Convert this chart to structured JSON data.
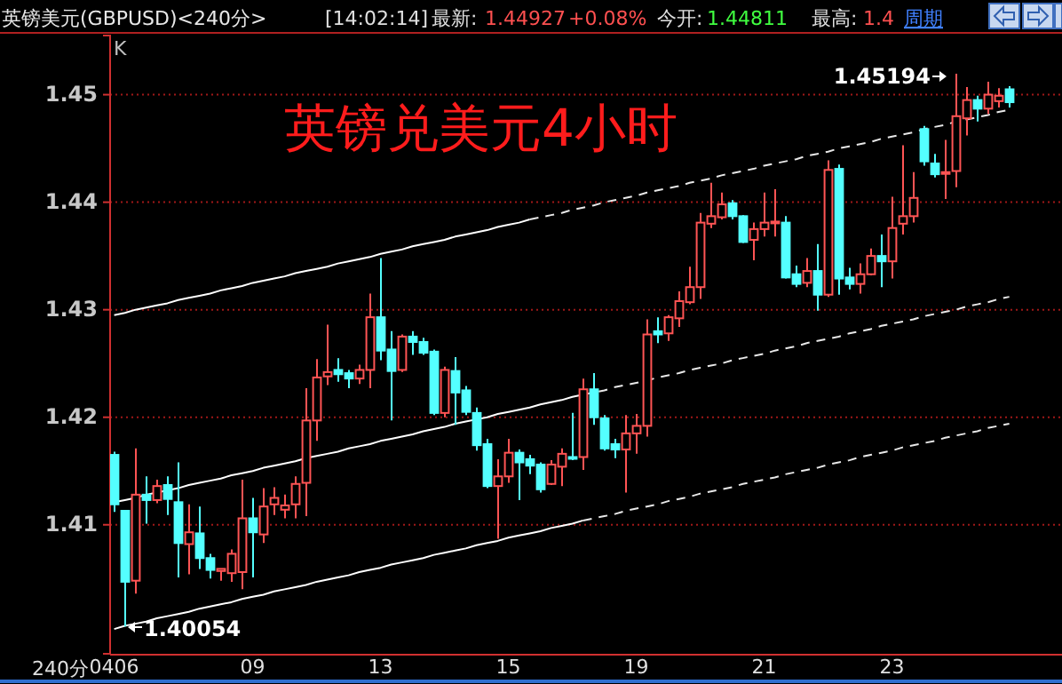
{
  "chart_data": {
    "type": "candlestick",
    "title": "英镑兑美元4小时",
    "subtitle": "英镑美元(GBPUSD)<240分>",
    "xlabel": "240分",
    "categories": [
      "0406",
      null,
      null,
      null,
      null,
      null,
      null,
      null,
      null,
      null,
      null,
      null,
      null,
      "09",
      null,
      null,
      null,
      null,
      null,
      null,
      null,
      null,
      null,
      null,
      null,
      "13",
      null,
      null,
      null,
      null,
      null,
      null,
      null,
      null,
      null,
      null,
      null,
      "15",
      null,
      null,
      null,
      null,
      null,
      null,
      null,
      null,
      null,
      null,
      null,
      "19",
      null,
      null,
      null,
      null,
      null,
      null,
      null,
      null,
      null,
      null,
      null,
      "21",
      null,
      null,
      null,
      null,
      null,
      null,
      null,
      null,
      null,
      null,
      null,
      "23",
      null,
      null,
      null,
      null,
      null,
      null,
      null,
      null,
      null,
      null,
      null
    ],
    "ylim": [
      1.398,
      1.4555
    ],
    "yticks": [
      1.41,
      1.42,
      1.43,
      1.44,
      1.45
    ],
    "grid": "y",
    "marker": "none",
    "ohlc": [
      [
        1.4165,
        1.4168,
        1.4112,
        1.4119
      ],
      [
        1.4113,
        1.4113,
        1.40054,
        1.4047
      ],
      [
        1.4048,
        1.4171,
        1.4036,
        1.4128
      ],
      [
        1.4128,
        1.4145,
        1.4101,
        1.4123
      ],
      [
        1.4123,
        1.4142,
        1.412,
        1.4136
      ],
      [
        1.4137,
        1.4145,
        1.4109,
        1.4124
      ],
      [
        1.4121,
        1.4158,
        1.4051,
        1.4083
      ],
      [
        1.4082,
        1.4119,
        1.4054,
        1.4093
      ],
      [
        1.4092,
        1.4117,
        1.4059,
        1.4069
      ],
      [
        1.4069,
        1.4073,
        1.405,
        1.4058
      ],
      [
        1.4057,
        1.4059,
        1.4048,
        1.4059
      ],
      [
        1.4055,
        1.4077,
        1.4047,
        1.4073
      ],
      [
        1.4056,
        1.4142,
        1.404,
        1.4106
      ],
      [
        1.4106,
        1.4125,
        1.4051,
        1.4093
      ],
      [
        1.4091,
        1.4134,
        1.4083,
        1.4117
      ],
      [
        1.4119,
        1.4135,
        1.4109,
        1.4125
      ],
      [
        1.4114,
        1.4128,
        1.4106,
        1.4118
      ],
      [
        1.4119,
        1.4145,
        1.4106,
        1.4138
      ],
      [
        1.4139,
        1.4227,
        1.4108,
        1.4197
      ],
      [
        1.4197,
        1.4254,
        1.4178,
        1.4237
      ],
      [
        1.4238,
        1.4286,
        1.423,
        1.4242
      ],
      [
        1.4244,
        1.4255,
        1.4233,
        1.424
      ],
      [
        1.4241,
        1.4244,
        1.4227,
        1.4236
      ],
      [
        1.4236,
        1.4249,
        1.4231,
        1.4244
      ],
      [
        1.4244,
        1.4315,
        1.4227,
        1.4293
      ],
      [
        1.4293,
        1.4348,
        1.4253,
        1.4262
      ],
      [
        1.4263,
        1.428,
        1.4197,
        1.4243
      ],
      [
        1.4244,
        1.4277,
        1.4242,
        1.4275
      ],
      [
        1.4275,
        1.428,
        1.4258,
        1.427
      ],
      [
        1.427,
        1.4274,
        1.4258,
        1.426
      ],
      [
        1.4261,
        1.4263,
        1.4202,
        1.4204
      ],
      [
        1.4204,
        1.4247,
        1.42,
        1.4244
      ],
      [
        1.4243,
        1.4256,
        1.4193,
        1.4223
      ],
      [
        1.4225,
        1.4229,
        1.4202,
        1.4205
      ],
      [
        1.4204,
        1.4209,
        1.4169,
        1.4174
      ],
      [
        1.4175,
        1.418,
        1.4134,
        1.4136
      ],
      [
        1.4136,
        1.4161,
        1.4087,
        1.4145
      ],
      [
        1.4145,
        1.418,
        1.4139,
        1.4167
      ],
      [
        1.4167,
        1.417,
        1.4123,
        1.4158
      ],
      [
        1.4161,
        1.4165,
        1.4147,
        1.4155
      ],
      [
        1.4156,
        1.4158,
        1.413,
        1.4133
      ],
      [
        1.4138,
        1.416,
        1.4137,
        1.4156
      ],
      [
        1.4154,
        1.4171,
        1.4136,
        1.4166
      ],
      [
        1.4163,
        1.4204,
        1.416,
        1.4162
      ],
      [
        1.4163,
        1.4236,
        1.4151,
        1.4226
      ],
      [
        1.4226,
        1.4241,
        1.4193,
        1.42
      ],
      [
        1.4199,
        1.4202,
        1.4169,
        1.4171
      ],
      [
        1.4175,
        1.418,
        1.4162,
        1.417
      ],
      [
        1.417,
        1.4202,
        1.413,
        1.4185
      ],
      [
        1.4185,
        1.4203,
        1.4166,
        1.4192
      ],
      [
        1.4192,
        1.4291,
        1.4182,
        1.4277
      ],
      [
        1.428,
        1.4293,
        1.4269,
        1.4277
      ],
      [
        1.4278,
        1.4295,
        1.4271,
        1.4293
      ],
      [
        1.4292,
        1.4317,
        1.4284,
        1.4308
      ],
      [
        1.4307,
        1.434,
        1.4305,
        1.4321
      ],
      [
        1.4321,
        1.439,
        1.431,
        1.4381
      ],
      [
        1.438,
        1.4418,
        1.4376,
        1.4387
      ],
      [
        1.4386,
        1.4409,
        1.4384,
        1.4398
      ],
      [
        1.4399,
        1.4402,
        1.4384,
        1.4387
      ],
      [
        1.4387,
        1.4388,
        1.4362,
        1.4363
      ],
      [
        1.4365,
        1.4381,
        1.4346,
        1.4375
      ],
      [
        1.4375,
        1.4409,
        1.4368,
        1.4381
      ],
      [
        1.4381,
        1.4412,
        1.4368,
        1.4382
      ],
      [
        1.4381,
        1.4387,
        1.4329,
        1.433
      ],
      [
        1.4333,
        1.4341,
        1.4321,
        1.4324
      ],
      [
        1.4325,
        1.4348,
        1.4321,
        1.4336
      ],
      [
        1.4336,
        1.4361,
        1.4299,
        1.4314
      ],
      [
        1.4314,
        1.4439,
        1.4312,
        1.443
      ],
      [
        1.4431,
        1.4435,
        1.4314,
        1.4329
      ],
      [
        1.433,
        1.4339,
        1.4319,
        1.4324
      ],
      [
        1.4324,
        1.4343,
        1.4315,
        1.4333
      ],
      [
        1.4333,
        1.4357,
        1.4332,
        1.435
      ],
      [
        1.435,
        1.437,
        1.4321,
        1.4345
      ],
      [
        1.4345,
        1.4405,
        1.4329,
        1.4376
      ],
      [
        1.438,
        1.4453,
        1.437,
        1.4387
      ],
      [
        1.4387,
        1.4428,
        1.4381,
        1.4404
      ],
      [
        1.4468,
        1.4471,
        1.4434,
        1.4438
      ],
      [
        1.4436,
        1.4445,
        1.4423,
        1.4426
      ],
      [
        1.4427,
        1.4458,
        1.4403,
        1.4428
      ],
      [
        1.4429,
        1.45194,
        1.4414,
        1.448
      ],
      [
        1.4478,
        1.4507,
        1.4462,
        1.4495
      ],
      [
        1.4495,
        1.4499,
        1.4475,
        1.4487
      ],
      [
        1.4487,
        1.4512,
        1.4482,
        1.45
      ],
      [
        1.4494,
        1.4506,
        1.4488,
        1.4499
      ],
      [
        1.4505,
        1.4508,
        1.4488,
        1.4493
      ]
    ],
    "colors": [
      "#54ffff",
      "#54ffff",
      "#ff5454",
      "#54ffff",
      "#ff5454",
      "#54ffff",
      "#54ffff",
      "#ff5454",
      "#54ffff",
      "#54ffff",
      "#ff5454",
      "#ff5454",
      "#ff5454",
      "#54ffff",
      "#ff5454",
      "#ff5454",
      "#ff5454",
      "#ff5454",
      "#ff5454",
      "#ff5454",
      "#ff5454",
      "#54ffff",
      "#54ffff",
      "#ff5454",
      "#ff5454",
      "#54ffff",
      "#54ffff",
      "#ff5454",
      "#54ffff",
      "#54ffff",
      "#54ffff",
      "#ff5454",
      "#54ffff",
      "#54ffff",
      "#54ffff",
      "#54ffff",
      "#ff5454",
      "#ff5454",
      "#54ffff",
      "#54ffff",
      "#54ffff",
      "#ff5454",
      "#ff5454",
      "#54ffff",
      "#ff5454",
      "#54ffff",
      "#54ffff",
      "#54ffff",
      "#ff5454",
      "#ff5454",
      "#ff5454",
      "#54ffff",
      "#ff5454",
      "#ff5454",
      "#ff5454",
      "#ff5454",
      "#ff5454",
      "#ff5454",
      "#54ffff",
      "#54ffff",
      "#ff5454",
      "#ff5454",
      "#ff5454",
      "#54ffff",
      "#54ffff",
      "#ff5454",
      "#54ffff",
      "#ff5454",
      "#54ffff",
      "#54ffff",
      "#ff5454",
      "#ff5454",
      "#54ffff",
      "#ff5454",
      "#ff5454",
      "#ff5454",
      "#54ffff",
      "#54ffff",
      "#ff5454",
      "#ff5454",
      "#ff5454",
      "#54ffff",
      "#ff5454",
      "#ff5454",
      "#54ffff"
    ],
    "series": [
      {
        "type": "line",
        "color": "#ffffff",
        "line_style": "solid",
        "values": [
          1.4295,
          1.4297,
          1.43,
          1.4302,
          1.4304,
          1.4306,
          1.4309,
          1.4311,
          1.4313,
          1.4315,
          1.4318,
          1.432,
          1.4322,
          1.4325,
          1.4327,
          1.4329,
          1.4331,
          1.4334,
          1.4336,
          1.4338,
          1.434,
          1.4343,
          1.4345,
          1.4347,
          1.4349,
          1.4352,
          1.4354,
          1.4356,
          1.4359,
          1.4361,
          1.4363,
          1.4365,
          1.4368,
          1.437,
          1.4372,
          1.4374,
          1.4377,
          1.4379,
          1.4381,
          1.4384,
          null,
          null,
          null,
          null,
          null,
          null,
          null,
          null,
          null,
          null,
          null,
          null,
          null,
          null,
          null,
          null,
          null,
          null,
          null,
          null,
          null,
          null,
          null,
          null,
          null,
          null,
          null,
          null,
          null,
          null,
          null,
          null,
          null,
          null,
          null,
          null,
          null,
          null,
          null,
          null,
          null,
          null,
          null,
          null,
          null
        ]
      },
      {
        "type": "line",
        "color": "#e8e8e8",
        "line_style": "dashed",
        "values": [
          null,
          null,
          null,
          null,
          null,
          null,
          null,
          null,
          null,
          null,
          null,
          null,
          null,
          null,
          null,
          null,
          null,
          null,
          null,
          null,
          null,
          null,
          null,
          null,
          null,
          null,
          null,
          null,
          null,
          null,
          null,
          null,
          null,
          null,
          null,
          null,
          null,
          null,
          null,
          1.4384,
          1.4386,
          1.4388,
          1.439,
          1.4393,
          1.4395,
          1.4397,
          1.44,
          1.4402,
          1.4404,
          1.4406,
          1.4409,
          1.4411,
          1.4413,
          1.4415,
          1.4418,
          1.442,
          1.4422,
          1.4425,
          1.4427,
          1.4429,
          1.4431,
          1.4434,
          1.4436,
          1.4438,
          1.444,
          1.4443,
          1.4445,
          1.4447,
          1.445,
          1.4452,
          1.4454,
          1.4456,
          1.4459,
          1.4461,
          1.4463,
          1.4465,
          1.4468,
          1.447,
          1.4472,
          1.4475,
          1.4477,
          1.4479,
          1.4481,
          1.4484,
          1.4486
        ]
      },
      {
        "type": "line",
        "color": "#ffffff",
        "line_style": "solid",
        "values": [
          1.4121,
          1.4123,
          1.4125,
          1.4128,
          1.413,
          1.4132,
          1.4134,
          1.4137,
          1.4139,
          1.4141,
          1.4143,
          1.4146,
          1.4148,
          1.415,
          1.4153,
          1.4155,
          1.4157,
          1.4159,
          1.4162,
          1.4164,
          1.4166,
          1.4168,
          1.4171,
          1.4173,
          1.4175,
          1.4178,
          1.418,
          1.4182,
          1.4184,
          1.4187,
          1.4189,
          1.4191,
          1.4194,
          1.4196,
          1.4198,
          1.42,
          1.4203,
          1.4205,
          1.4207,
          1.4209,
          1.4212,
          1.4214,
          1.4216,
          1.4219,
          1.4221,
          null,
          null,
          null,
          null,
          null,
          null,
          null,
          null,
          null,
          null,
          null,
          null,
          null,
          null,
          null,
          null,
          null,
          null,
          null,
          null,
          null,
          null,
          null,
          null,
          null,
          null,
          null,
          null,
          null,
          null,
          null,
          null,
          null,
          null,
          null,
          null,
          null,
          null,
          null,
          null
        ]
      },
      {
        "type": "line",
        "color": "#e8e8e8",
        "line_style": "dashed",
        "values": [
          null,
          null,
          null,
          null,
          null,
          null,
          null,
          null,
          null,
          null,
          null,
          null,
          null,
          null,
          null,
          null,
          null,
          null,
          null,
          null,
          null,
          null,
          null,
          null,
          null,
          null,
          null,
          null,
          null,
          null,
          null,
          null,
          null,
          null,
          null,
          null,
          null,
          null,
          null,
          null,
          null,
          null,
          null,
          null,
          1.4221,
          1.4223,
          1.4225,
          1.4228,
          1.423,
          1.4232,
          1.4234,
          1.4237,
          1.4239,
          1.4241,
          1.4244,
          1.4246,
          1.4248,
          1.425,
          1.4253,
          1.4255,
          1.4257,
          1.4259,
          1.4262,
          1.4264,
          1.4266,
          1.4269,
          1.4271,
          1.4273,
          1.4275,
          1.4278,
          1.428,
          1.4282,
          1.4285,
          1.4287,
          1.4289,
          1.4291,
          1.4294,
          1.4296,
          1.4298,
          1.43,
          1.4303,
          1.4305,
          1.4307,
          1.431,
          1.4312
        ]
      },
      {
        "type": "line",
        "color": "#ffffff",
        "line_style": "solid",
        "values": [
          1.4003,
          1.4006,
          1.4008,
          1.401,
          1.4013,
          1.4015,
          1.4017,
          1.4019,
          1.4022,
          1.4024,
          1.4026,
          1.4028,
          1.4031,
          1.4033,
          1.4035,
          1.4038,
          1.404,
          1.4042,
          1.4044,
          1.4047,
          1.4049,
          1.4051,
          1.4053,
          1.4056,
          1.4058,
          1.406,
          1.4063,
          1.4065,
          1.4067,
          1.4069,
          1.4072,
          1.4074,
          1.4076,
          1.4078,
          1.4081,
          1.4083,
          1.4085,
          1.4088,
          1.409,
          1.4092,
          1.4094,
          1.4097,
          1.4099,
          1.4101,
          1.4104,
          null,
          null,
          null,
          null,
          null,
          null,
          null,
          null,
          null,
          null,
          null,
          null,
          null,
          null,
          null,
          null,
          null,
          null,
          null,
          null,
          null,
          null,
          null,
          null,
          null,
          null,
          null,
          null,
          null,
          null,
          null,
          null,
          null,
          null,
          null,
          null,
          null,
          null,
          null,
          null
        ]
      },
      {
        "type": "line",
        "color": "#e8e8e8",
        "line_style": "dashed",
        "values": [
          null,
          null,
          null,
          null,
          null,
          null,
          null,
          null,
          null,
          null,
          null,
          null,
          null,
          null,
          null,
          null,
          null,
          null,
          null,
          null,
          null,
          null,
          null,
          null,
          null,
          null,
          null,
          null,
          null,
          null,
          null,
          null,
          null,
          null,
          null,
          null,
          null,
          null,
          null,
          null,
          null,
          null,
          null,
          null,
          1.4104,
          1.4106,
          1.4108,
          1.411,
          1.4113,
          1.4115,
          1.4117,
          1.4119,
          1.4122,
          1.4124,
          1.4126,
          1.4129,
          1.4131,
          1.4133,
          1.4135,
          1.4138,
          1.414,
          1.4142,
          1.4144,
          1.4147,
          1.4149,
          1.4151,
          1.4153,
          1.4156,
          1.4158,
          1.416,
          1.4163,
          1.4165,
          1.4167,
          1.4169,
          1.4172,
          1.4174,
          1.4176,
          1.4178,
          1.4181,
          1.4183,
          1.4185,
          1.4187,
          1.419,
          1.4192,
          1.4194
        ]
      }
    ],
    "annotations": [
      "[14:02:14]",
      "最新:",
      "1.44927",
      "+0.08%",
      "今开:",
      "1.44811",
      "最高:",
      "1.4",
      "周期",
      "K",
      "1.45194",
      "1.40054"
    ]
  }
}
